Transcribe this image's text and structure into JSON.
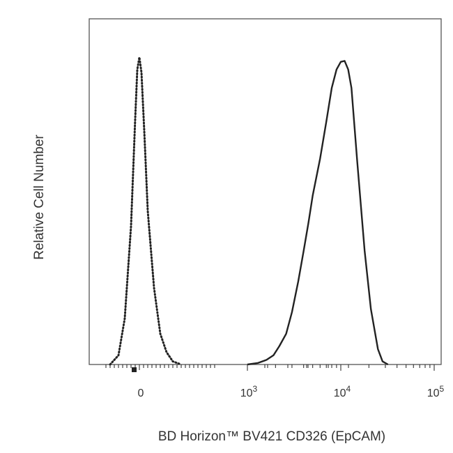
{
  "chart_data": {
    "type": "line",
    "title": "",
    "xlabel": "BD Horizon™ BV421 CD326 (EpCAM)",
    "ylabel": "Relative Cell Number",
    "x_scale": "biexponential",
    "xlim_display": [
      -100,
      150000
    ],
    "ylim": [
      0,
      1.1
    ],
    "grid": false,
    "legend": "none",
    "x_ticks": [
      {
        "mantissa": "0",
        "exponent": "",
        "value": 0
      },
      {
        "mantissa": "10",
        "exponent": "3",
        "value": 1000
      },
      {
        "mantissa": "10",
        "exponent": "4",
        "value": 10000
      },
      {
        "mantissa": "10",
        "exponent": "5",
        "value": 100000
      }
    ],
    "series": [
      {
        "line_style": "dotted",
        "x": [
          -70,
          -50,
          -35,
          -20,
          -10,
          -5,
          0,
          5,
          12,
          20,
          35,
          50,
          65,
          80,
          100
        ],
        "y": [
          0,
          0.03,
          0.15,
          0.45,
          0.8,
          0.96,
          1.0,
          0.95,
          0.75,
          0.5,
          0.25,
          0.1,
          0.04,
          0.01,
          0
        ]
      },
      {
        "line_style": "solid",
        "x": [
          1000,
          1300,
          1600,
          1900,
          2200,
          2600,
          3000,
          3500,
          4000,
          4500,
          5000,
          6000,
          7000,
          8000,
          9000,
          10000,
          11000,
          12000,
          13000,
          15000,
          18000,
          21000,
          25000,
          28000,
          32000
        ],
        "y": [
          0,
          0.005,
          0.015,
          0.03,
          0.06,
          0.1,
          0.17,
          0.27,
          0.37,
          0.46,
          0.55,
          0.67,
          0.79,
          0.9,
          0.96,
          0.985,
          0.988,
          0.96,
          0.9,
          0.66,
          0.37,
          0.18,
          0.05,
          0.01,
          0
        ]
      }
    ]
  }
}
